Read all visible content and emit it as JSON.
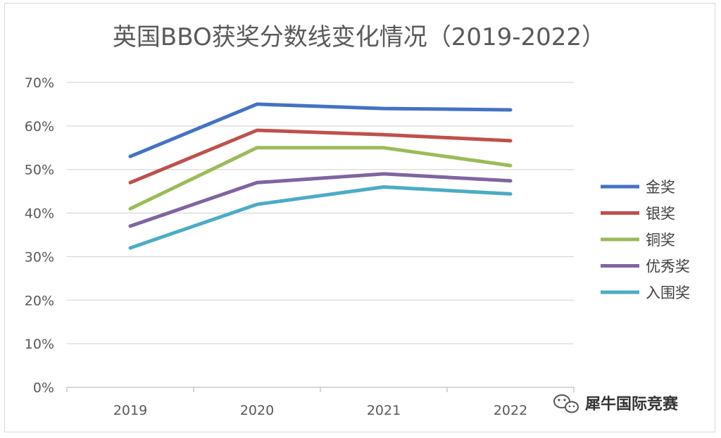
{
  "chart_data": {
    "type": "line",
    "title": "英国BBO获奖分数线变化情况（2019-2022）",
    "xlabel": "",
    "ylabel": "",
    "categories": [
      "2019",
      "2020",
      "2021",
      "2022"
    ],
    "y_ticks": [
      "0%",
      "10%",
      "20%",
      "30%",
      "40%",
      "50%",
      "60%",
      "70%"
    ],
    "ylim": [
      0,
      70
    ],
    "y_unit": "%",
    "grid": true,
    "legend_position": "right",
    "series": [
      {
        "name": "金奖",
        "color": "#4472c4",
        "values": [
          53,
          65,
          64,
          63.7
        ]
      },
      {
        "name": "银奖",
        "color": "#c0504d",
        "values": [
          47,
          59,
          58,
          56.6
        ]
      },
      {
        "name": "铜奖",
        "color": "#9bbb59",
        "values": [
          41,
          55,
          55,
          50.9
        ]
      },
      {
        "name": "优秀奖",
        "color": "#8064a2",
        "values": [
          37,
          47,
          49,
          47.4
        ]
      },
      {
        "name": "入围奖",
        "color": "#4bacc6",
        "values": [
          32,
          42,
          46,
          44.4
        ]
      }
    ]
  },
  "watermark": {
    "text": "犀牛国际竞赛",
    "icon": "wechat-icon"
  }
}
